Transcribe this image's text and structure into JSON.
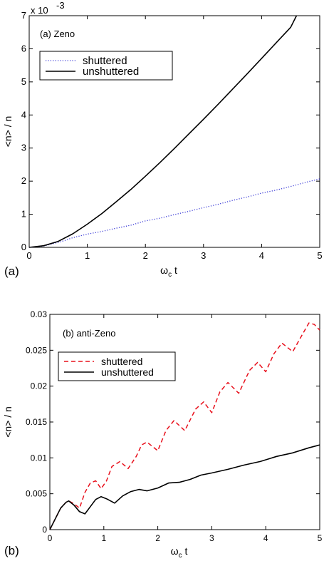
{
  "chart_data": [
    {
      "type": "line",
      "panel_tag": "(a)",
      "annotation": "(a) Zeno",
      "xlabel_main": "ω",
      "xlabel_sub": "c",
      "xlabel_tail": " t",
      "ylabel": "<n> / n",
      "ylabel_bar": "‾",
      "y_exponent": "x 10",
      "y_exponent_power": "-3",
      "xlim": [
        0,
        5
      ],
      "ylim": [
        0,
        7
      ],
      "xticks": [
        "0",
        "1",
        "2",
        "3",
        "4",
        "5"
      ],
      "yticks": [
        "0",
        "1",
        "2",
        "3",
        "4",
        "5",
        "6",
        "7"
      ],
      "legend_position": "upper-left",
      "series": [
        {
          "name": "shuttered",
          "style": "dotted",
          "color": "#3b3bd6",
          "x": [
            0,
            0.25,
            0.5,
            0.6,
            0.75,
            1,
            1.25,
            1.5,
            1.75,
            2,
            2.25,
            2.5,
            2.75,
            3,
            3.25,
            3.5,
            3.75,
            4,
            4.25,
            4.5,
            4.75,
            5
          ],
          "y": [
            0,
            0.04,
            0.15,
            0.2,
            0.29,
            0.4,
            0.48,
            0.58,
            0.67,
            0.8,
            0.88,
            0.99,
            1.09,
            1.2,
            1.3,
            1.42,
            1.52,
            1.64,
            1.73,
            1.84,
            1.96,
            2.07
          ]
        },
        {
          "name": "unshuttered",
          "style": "solid",
          "color": "#000000",
          "x": [
            0,
            0.25,
            0.5,
            0.75,
            1,
            1.25,
            1.5,
            1.75,
            2,
            2.25,
            2.5,
            2.75,
            3,
            3.25,
            3.5,
            3.75,
            4,
            4.25,
            4.5,
            4.6
          ],
          "y": [
            0,
            0.05,
            0.18,
            0.41,
            0.7,
            1.02,
            1.38,
            1.75,
            2.15,
            2.56,
            2.99,
            3.43,
            3.87,
            4.32,
            4.78,
            5.24,
            5.71,
            6.18,
            6.65,
            7.0
          ]
        }
      ]
    },
    {
      "type": "line",
      "panel_tag": "(b)",
      "annotation": "(b) anti-Zeno",
      "xlabel_main": "ω",
      "xlabel_sub": "c",
      "xlabel_tail": " t",
      "ylabel": "<n> / n",
      "ylabel_bar": "‾",
      "xlim": [
        0,
        5
      ],
      "ylim": [
        0,
        0.03
      ],
      "xticks": [
        "0",
        "1",
        "2",
        "3",
        "4",
        "5"
      ],
      "yticks": [
        "0",
        "0.005",
        "0.01",
        "0.015",
        "0.02",
        "0.025",
        "0.03"
      ],
      "legend_position": "upper-left",
      "series": [
        {
          "name": "shuttered",
          "style": "dashed",
          "color": "#e8101c",
          "x": [
            0,
            0.1,
            0.2,
            0.3,
            0.35,
            0.45,
            0.55,
            0.65,
            0.75,
            0.85,
            0.95,
            1.05,
            1.15,
            1.3,
            1.45,
            1.6,
            1.7,
            1.8,
            2.0,
            2.15,
            2.3,
            2.5,
            2.7,
            2.85,
            3.0,
            3.15,
            3.3,
            3.5,
            3.7,
            3.85,
            4.0,
            4.15,
            4.3,
            4.5,
            4.7,
            4.8,
            4.9,
            5.0
          ],
          "y": [
            0,
            0.0015,
            0.003,
            0.0038,
            0.004,
            0.0036,
            0.003,
            0.0052,
            0.0065,
            0.0068,
            0.0057,
            0.0068,
            0.0088,
            0.0095,
            0.0085,
            0.0102,
            0.0118,
            0.0122,
            0.011,
            0.0138,
            0.0152,
            0.0138,
            0.0168,
            0.0178,
            0.0163,
            0.0192,
            0.0205,
            0.019,
            0.0222,
            0.0233,
            0.022,
            0.0245,
            0.026,
            0.0248,
            0.0275,
            0.0288,
            0.0286,
            0.0278
          ]
        },
        {
          "name": "unshuttered",
          "style": "solid",
          "color": "#000000",
          "x": [
            0,
            0.1,
            0.2,
            0.3,
            0.35,
            0.45,
            0.55,
            0.65,
            0.75,
            0.85,
            0.95,
            1.05,
            1.2,
            1.35,
            1.5,
            1.65,
            1.8,
            2.0,
            2.2,
            2.4,
            2.6,
            2.8,
            3.0,
            3.3,
            3.6,
            3.9,
            4.2,
            4.5,
            4.8,
            5.0
          ],
          "y": [
            0,
            0.0015,
            0.003,
            0.0038,
            0.004,
            0.0034,
            0.0025,
            0.0022,
            0.0032,
            0.0042,
            0.0046,
            0.0043,
            0.0037,
            0.0047,
            0.0053,
            0.0056,
            0.0054,
            0.0058,
            0.0065,
            0.0066,
            0.007,
            0.0076,
            0.0079,
            0.0084,
            0.009,
            0.0095,
            0.0102,
            0.0107,
            0.0114,
            0.0118
          ]
        }
      ]
    }
  ]
}
